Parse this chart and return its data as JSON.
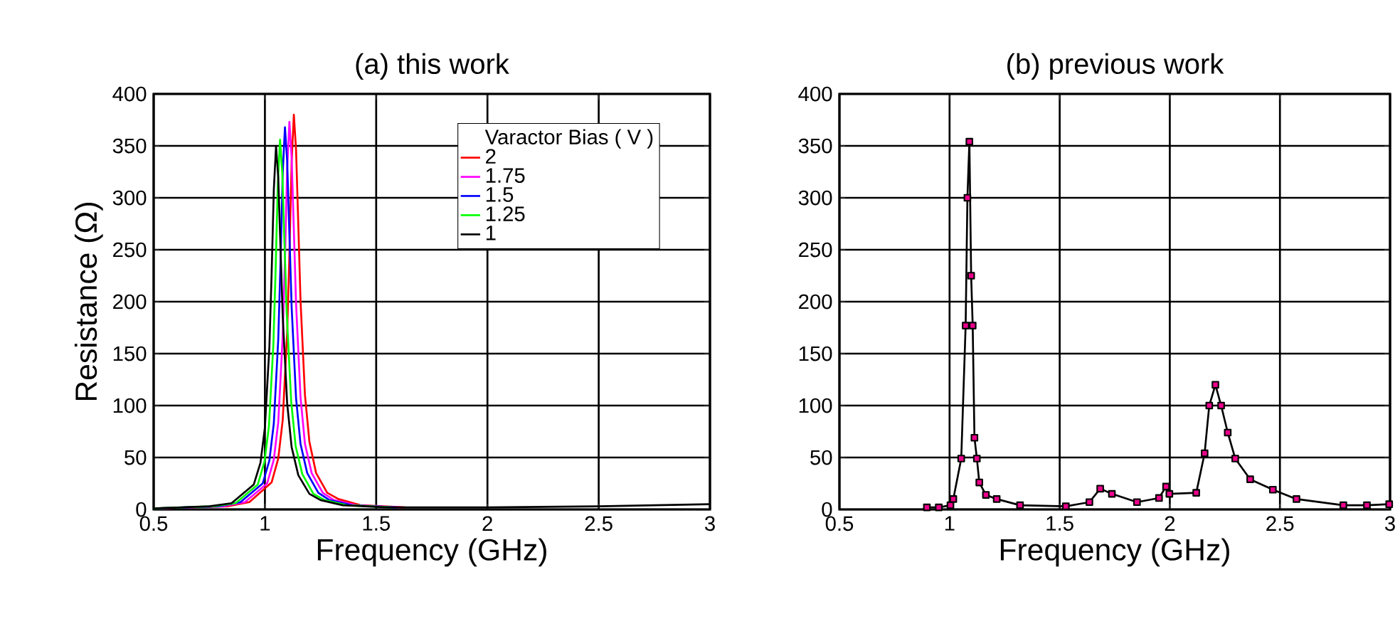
{
  "chart_data": [
    {
      "type": "line",
      "title": "(a) this work",
      "xlabel": "Frequency (GHz)",
      "ylabel": "Resistance (Ω)",
      "legend_title": "Varactor Bias ( V )",
      "legend": "top right",
      "grid": true,
      "xlim": [
        0.5,
        3
      ],
      "ylim": [
        0,
        400
      ],
      "xticks": [
        0.5,
        1,
        1.5,
        2,
        2.5,
        3
      ],
      "yticks": [
        0,
        50,
        100,
        150,
        200,
        250,
        300,
        350,
        400
      ],
      "series": [
        {
          "name": "2",
          "color": "#ff0000",
          "x": [
            0.5,
            0.83,
            0.93,
            1.03,
            1.06,
            1.08,
            1.1,
            1.11,
            1.12,
            1.13,
            1.14,
            1.15,
            1.16,
            1.18,
            1.2,
            1.23,
            1.28,
            1.33,
            1.43,
            1.63
          ],
          "values": [
            1,
            3,
            7,
            26,
            49,
            86,
            170,
            245,
            334,
            380,
            346,
            274,
            201,
            110,
            65,
            35,
            16,
            10,
            4,
            2
          ]
        },
        {
          "name": "1.75",
          "color": "#ff00ff",
          "x": [
            0.5,
            0.81,
            0.91,
            1.01,
            1.04,
            1.06,
            1.08,
            1.09,
            1.1,
            1.11,
            1.12,
            1.13,
            1.14,
            1.16,
            1.18,
            1.21,
            1.26,
            1.31,
            1.41,
            1.61
          ],
          "values": [
            1,
            3,
            7,
            25,
            48,
            84,
            167,
            241,
            328,
            373,
            339,
            269,
            198,
            108,
            63,
            35,
            16,
            9,
            4,
            2
          ]
        },
        {
          "name": "1.5",
          "color": "#0000ff",
          "x": [
            0.5,
            0.79,
            0.89,
            0.99,
            1.02,
            1.04,
            1.06,
            1.07,
            1.08,
            1.09,
            1.1,
            1.11,
            1.12,
            1.14,
            1.16,
            1.19,
            1.24,
            1.29,
            1.39,
            1.59
          ],
          "values": [
            1,
            3,
            7,
            25,
            47,
            83,
            164,
            237,
            324,
            368,
            335,
            265,
            195,
            107,
            63,
            35,
            16,
            9,
            4,
            2
          ]
        },
        {
          "name": "1.25",
          "color": "#00ff00",
          "x": [
            0.5,
            0.768,
            0.868,
            0.968,
            0.998,
            1.018,
            1.038,
            1.048,
            1.058,
            1.068,
            1.078,
            1.088,
            1.098,
            1.118,
            1.138,
            1.168,
            1.218,
            1.268,
            1.368,
            1.568
          ],
          "values": [
            1,
            3,
            6,
            24,
            46,
            80,
            159,
            230,
            313,
            356,
            324,
            256,
            189,
            104,
            61,
            34,
            15,
            9,
            4,
            2
          ]
        },
        {
          "name": "1",
          "color": "#000000",
          "x": [
            0.5,
            0.75,
            0.85,
            0.95,
            0.98,
            1.0,
            1.02,
            1.03,
            1.04,
            1.05,
            1.06,
            1.07,
            1.08,
            1.1,
            1.12,
            1.15,
            1.2,
            1.25,
            1.35,
            1.55,
            2,
            2.5,
            3
          ],
          "values": [
            1,
            3,
            6,
            24,
            45,
            79,
            156,
            226,
            308,
            350,
            319,
            252,
            186,
            102,
            60,
            33,
            15,
            9,
            4,
            2,
            2,
            3,
            5
          ]
        }
      ]
    },
    {
      "type": "line",
      "title": "(b) previous work",
      "xlabel": "Frequency (GHz)",
      "grid": true,
      "marker": "square",
      "xlim": [
        0.5,
        3
      ],
      "ylim": [
        0,
        400
      ],
      "xticks": [
        0.5,
        1,
        1.5,
        2,
        2.5,
        3
      ],
      "yticks": [
        0,
        50,
        100,
        150,
        200,
        250,
        300,
        350,
        400
      ],
      "series": [
        {
          "color": "#000000",
          "x": [
            0.897,
            0.951,
            1.004,
            1.017,
            1.053,
            1.073,
            1.081,
            1.09,
            1.098,
            1.105,
            1.113,
            1.124,
            1.135,
            1.165,
            1.214,
            1.32,
            1.528,
            1.635,
            1.684,
            1.737,
            1.851,
            1.951,
            1.983,
            1.998,
            2.12,
            2.158,
            2.179,
            2.207,
            2.233,
            2.263,
            2.297,
            2.365,
            2.468,
            2.575,
            2.788,
            2.895,
            2.996
          ],
          "values": [
            2,
            2,
            4,
            10,
            49,
            177,
            300,
            354,
            225,
            177,
            69,
            49,
            26,
            14,
            10,
            4,
            3,
            7,
            20,
            15,
            7,
            11,
            22,
            15,
            16,
            54,
            100,
            120,
            100,
            74,
            49,
            29,
            19,
            10,
            4,
            4,
            5
          ]
        }
      ]
    }
  ]
}
